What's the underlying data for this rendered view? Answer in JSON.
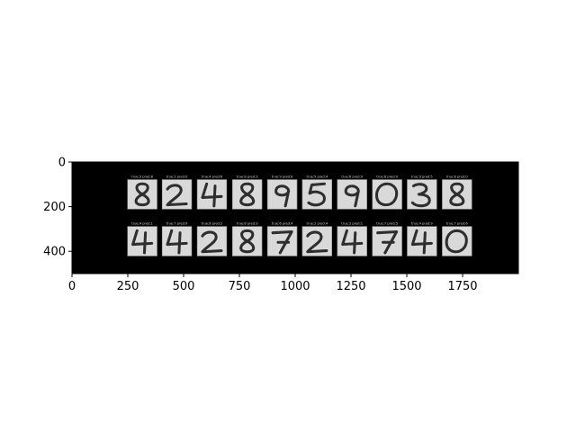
{
  "colors": {
    "figure_background": "#ffffff",
    "image_background": "#000000",
    "tile_background": "#d9d9d9",
    "tile_border": "#9a9a9a",
    "stroke": "#2e2e2e",
    "caption": "#d8d8d8"
  },
  "chart_data": {
    "type": "image",
    "title": "",
    "xlabel": "",
    "ylabel": "",
    "xlim": [
      0,
      2000
    ],
    "ylim": [
      500,
      0
    ],
    "grid": false,
    "x_ticks": [
      {
        "value": 0,
        "label": "0"
      },
      {
        "value": 250,
        "label": "250"
      },
      {
        "value": 500,
        "label": "500"
      },
      {
        "value": 750,
        "label": "750"
      },
      {
        "value": 1000,
        "label": "1000"
      },
      {
        "value": 1250,
        "label": "1250"
      },
      {
        "value": 1500,
        "label": "1500"
      },
      {
        "value": 1750,
        "label": "1750"
      }
    ],
    "y_ticks": [
      {
        "value": 0,
        "label": "0"
      },
      {
        "value": 200,
        "label": "200"
      },
      {
        "value": 400,
        "label": "400"
      }
    ],
    "panels": [
      [
        {
          "caption": "true:3 pred:8",
          "glyph": "8"
        },
        {
          "caption": "true:2 pred:0",
          "glyph": "2"
        },
        {
          "caption": "true:4 pred:6",
          "glyph": "4"
        },
        {
          "caption": "true:8 pred:3",
          "glyph": "8"
        },
        {
          "caption": "true:9 pred:8",
          "glyph": "9"
        },
        {
          "caption": "true:5 pred:4",
          "glyph": "5"
        },
        {
          "caption": "true:6 pred:9",
          "glyph": "9"
        },
        {
          "caption": "true:6 pred:0",
          "glyph": "0"
        },
        {
          "caption": "true:3 pred:5",
          "glyph": "3"
        },
        {
          "caption": "true:8 pred:0",
          "glyph": "8"
        }
      ],
      [
        {
          "caption": "true:4 pred:1",
          "glyph": "4"
        },
        {
          "caption": "true:7 pred:9",
          "glyph": "4"
        },
        {
          "caption": "true:8 pred:2",
          "glyph": "2"
        },
        {
          "caption": "true:8 pred:3",
          "glyph": "8"
        },
        {
          "caption": "true:6 pred:4",
          "glyph": "7"
        },
        {
          "caption": "true:2 pred:4",
          "glyph": "2"
        },
        {
          "caption": "true:2 pred:1",
          "glyph": "4"
        },
        {
          "caption": "true:7 pred:5",
          "glyph": "7"
        },
        {
          "caption": "true:4 pred:9",
          "glyph": "4"
        },
        {
          "caption": "true:7 pred:6",
          "glyph": "0"
        }
      ]
    ]
  }
}
